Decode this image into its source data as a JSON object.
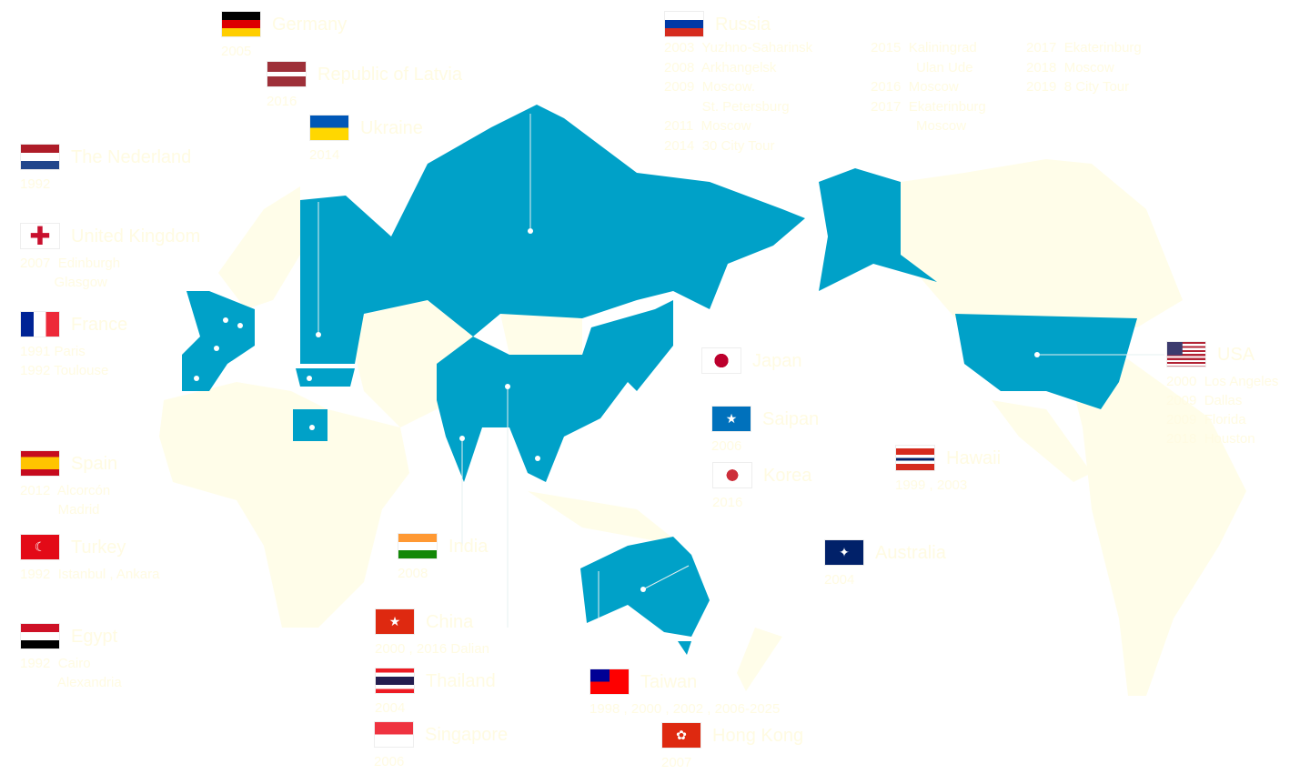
{
  "colors": {
    "visited": "#00a1c8",
    "land": "#fffde9",
    "text": "#fffbe2"
  },
  "entries": [
    {
      "id": "germany",
      "name": "Germany",
      "lines": "2005"
    },
    {
      "id": "latvia",
      "name": "Republic of Latvia",
      "lines": "2016"
    },
    {
      "id": "ukraine",
      "name": "Ukraine",
      "lines": "2014"
    },
    {
      "id": "netherland",
      "name": "The Nederland",
      "lines": "1992"
    },
    {
      "id": "uk",
      "name": "United Kingdom",
      "lines": "2007  Edinburgh\n         Glasgow"
    },
    {
      "id": "france",
      "name": "France",
      "lines": "1991 Paris\n1992 Toulouse"
    },
    {
      "id": "spain",
      "name": "Spain",
      "lines": "2012  Alcorcón\n          Madrid"
    },
    {
      "id": "turkey",
      "name": "Turkey",
      "lines": "1992  Istanbul , Ankara"
    },
    {
      "id": "egypt",
      "name": "Egypt",
      "lines": "1992  Cairo\n          Alexandria"
    },
    {
      "id": "russia",
      "name": "Russia",
      "lines": ""
    },
    {
      "id": "india",
      "name": "India",
      "lines": "2008"
    },
    {
      "id": "china",
      "name": "China",
      "lines": "2000 , 2016 Dalian"
    },
    {
      "id": "thailand",
      "name": "Thailand",
      "lines": "2004"
    },
    {
      "id": "singapore",
      "name": "Singapore",
      "lines": "2006"
    },
    {
      "id": "taiwan",
      "name": "Taiwan",
      "lines": "1998 , 2000 , 2002 , 2006-2025"
    },
    {
      "id": "hongkong",
      "name": "Hong Kong",
      "lines": "2007"
    },
    {
      "id": "japan",
      "name": "Japan",
      "lines": ""
    },
    {
      "id": "saipan",
      "name": "Saipan",
      "lines": "2006"
    },
    {
      "id": "korea",
      "name": "Korea",
      "lines": "2016"
    },
    {
      "id": "hawaii",
      "name": "Hawaii",
      "lines": "1999 , 2003"
    },
    {
      "id": "australia",
      "name": "Australia",
      "lines": "2004"
    },
    {
      "id": "usa",
      "name": "USA",
      "lines": "2000  Los Angeles\n2009  Dallas\n2009  Florida\n2018  Houston"
    }
  ],
  "russia_columns": [
    "2003  Yuzhno-Saharinsk\n2008  Arkhangelsk\n2009  Moscow.\n          St. Petersburg\n2011  Moscow\n2014  30 City Tour",
    "2015  Kaliningrad\n            Ulan Ude\n2016  Moscow\n2017  Ekaterinburg\n            Moscow",
    "2017  Ekaterinburg\n2018  Moscow\n2019  8 City Tour"
  ]
}
